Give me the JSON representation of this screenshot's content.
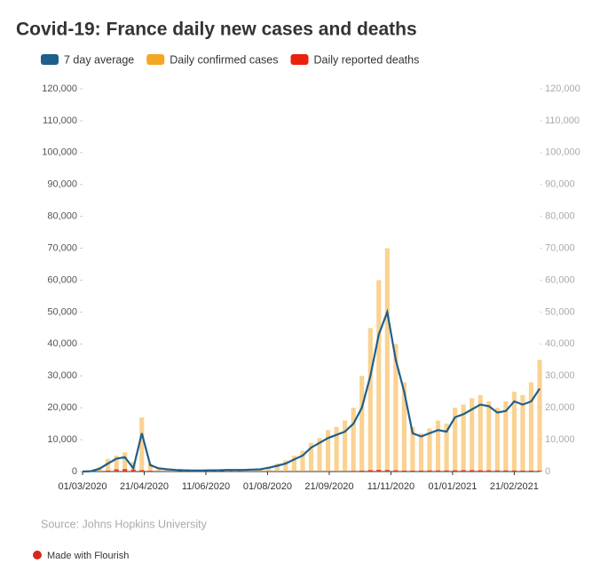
{
  "chart_data": {
    "type": "bar_line",
    "title": "Covid-19: France daily new cases and deaths",
    "source": "Source: Johns Hopkins University",
    "credit": "Made with Flourish",
    "legend": "top",
    "x": [
      "01/03/2020",
      "08/03/2020",
      "15/03/2020",
      "22/03/2020",
      "29/03/2020",
      "05/04/2020",
      "12/04/2020",
      "19/04/2020",
      "26/04/2020",
      "03/05/2020",
      "10/05/2020",
      "17/05/2020",
      "24/05/2020",
      "31/05/2020",
      "07/06/2020",
      "14/06/2020",
      "21/06/2020",
      "28/06/2020",
      "05/07/2020",
      "12/07/2020",
      "19/07/2020",
      "26/07/2020",
      "02/08/2020",
      "09/08/2020",
      "16/08/2020",
      "23/08/2020",
      "30/08/2020",
      "06/09/2020",
      "13/09/2020",
      "20/09/2020",
      "27/09/2020",
      "04/10/2020",
      "11/10/2020",
      "18/10/2020",
      "25/10/2020",
      "01/11/2020",
      "08/11/2020",
      "15/11/2020",
      "22/11/2020",
      "29/11/2020",
      "06/12/2020",
      "13/12/2020",
      "20/12/2020",
      "27/12/2020",
      "03/01/2021",
      "10/01/2021",
      "17/01/2021",
      "24/01/2021",
      "31/01/2021",
      "07/02/2021",
      "14/02/2021",
      "21/02/2021",
      "28/02/2021",
      "07/03/2021",
      "14/03/2021"
    ],
    "xlim": [
      "01/03/2020",
      "14/03/2021"
    ],
    "xticks": [
      "01/03/2020",
      "21/04/2020",
      "11/06/2020",
      "01/08/2020",
      "21/09/2020",
      "11/11/2020",
      "01/01/2021",
      "21/02/2021"
    ],
    "ylim": [
      0,
      120000
    ],
    "yticks": [
      0,
      {
        "value": 10000,
        "label": "10,000"
      },
      {
        "value": 20000,
        "label": "20,000"
      },
      {
        "value": 30000,
        "label": "30,000"
      },
      {
        "value": 40000,
        "label": "40,000"
      },
      {
        "value": 50000,
        "label": "50,000"
      },
      {
        "value": 60000,
        "label": "60,000"
      },
      {
        "value": 70000,
        "label": "70,000"
      },
      {
        "value": 80000,
        "label": "80,000"
      },
      {
        "value": 90000,
        "label": "90,000"
      },
      {
        "value": 100000,
        "label": "100,000"
      },
      {
        "value": 110000,
        "label": "110,000"
      },
      {
        "value": 120000,
        "label": "120,000"
      }
    ],
    "y2lim": [
      0,
      120000
    ],
    "y2ticks": [
      0,
      {
        "value": 10000,
        "label": "10,000"
      },
      {
        "value": 20000,
        "label": "20,000"
      },
      {
        "value": 30000,
        "label": "30,000"
      },
      {
        "value": 40000,
        "label": "40,000"
      },
      {
        "value": 50000,
        "label": "50,000"
      },
      {
        "value": 60000,
        "label": "60,000"
      },
      {
        "value": 70000,
        "label": "70,000"
      },
      {
        "value": 80000,
        "label": "80,000"
      },
      {
        "value": 90000,
        "label": "90,000"
      },
      {
        "value": 100000,
        "label": "100,000"
      },
      {
        "value": 110000,
        "label": "110,000"
      },
      {
        "value": 120000,
        "label": "120,000"
      }
    ],
    "series": [
      {
        "name": "7 day average",
        "color": "#1f5f8b",
        "kind": "line",
        "values": [
          0,
          100,
          900,
          2500,
          4000,
          4500,
          1000,
          12000,
          2000,
          1000,
          700,
          500,
          400,
          300,
          300,
          400,
          400,
          500,
          500,
          500,
          600,
          700,
          1200,
          1800,
          2500,
          3800,
          5000,
          7500,
          9000,
          10500,
          11500,
          12500,
          15000,
          20000,
          30000,
          43000,
          50000,
          35000,
          25000,
          12000,
          11000,
          12000,
          13000,
          12500,
          17000,
          18000,
          19500,
          21000,
          20500,
          18500,
          19000,
          22000,
          21000,
          22000,
          26000
        ]
      },
      {
        "name": "Daily confirmed cases",
        "color": "#f5a623",
        "kind": "bar",
        "axis": "y2",
        "values": [
          0,
          200,
          1500,
          4000,
          5000,
          6000,
          3000,
          17000,
          2500,
          1200,
          800,
          600,
          500,
          400,
          400,
          500,
          500,
          600,
          600,
          600,
          800,
          900,
          1500,
          2500,
          3500,
          5000,
          6500,
          9000,
          10500,
          13000,
          14000,
          16000,
          20000,
          30000,
          45000,
          60000,
          70000,
          40000,
          28000,
          14000,
          12000,
          13500,
          16000,
          15000,
          20000,
          21000,
          23000,
          24000,
          22000,
          20000,
          22000,
          25000,
          24000,
          28000,
          35000
        ]
      },
      {
        "name": "Daily reported deaths",
        "color": "#e8220b",
        "kind": "bar",
        "values": [
          0,
          5,
          50,
          300,
          700,
          800,
          600,
          450,
          250,
          150,
          80,
          60,
          40,
          30,
          20,
          15,
          15,
          15,
          15,
          15,
          15,
          15,
          15,
          20,
          20,
          30,
          40,
          60,
          80,
          100,
          120,
          150,
          200,
          300,
          450,
          550,
          500,
          400,
          300,
          300,
          300,
          350,
          350,
          350,
          400,
          450,
          450,
          400,
          400,
          350,
          350,
          330,
          300,
          300,
          300
        ]
      }
    ]
  }
}
